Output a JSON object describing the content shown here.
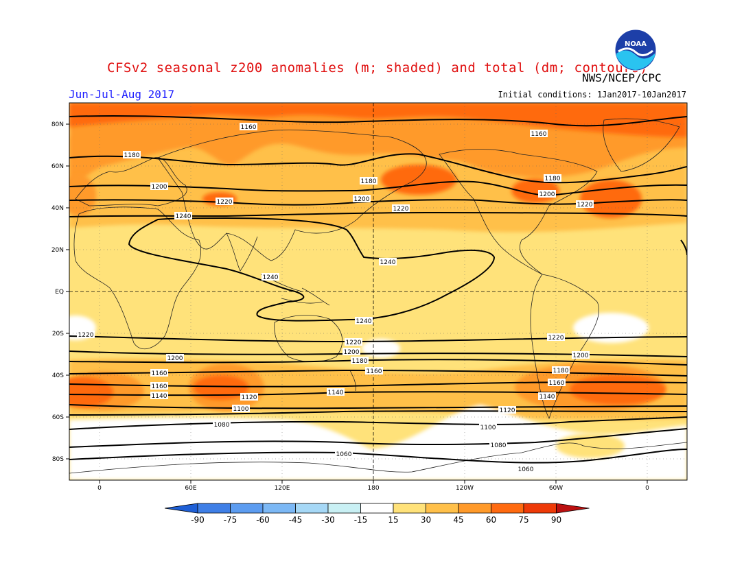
{
  "title": "CFSv2 seasonal z200 anomalies (m; shaded) and total (dm; contours)",
  "period": "Jun-Jul-Aug 2017",
  "credit": "NWS/NCEP/CPC",
  "initial_conditions": "Initial conditions: 1Jan2017-10Jan2017",
  "logo": {
    "text": "NOAA",
    "icon": "noaa-logo"
  },
  "lat_ticks": [
    "80N",
    "60N",
    "40N",
    "20N",
    "EQ",
    "20S",
    "40S",
    "60S",
    "80S"
  ],
  "lon_ticks": [
    "0",
    "60E",
    "120E",
    "180",
    "120W",
    "60W",
    "0"
  ],
  "contour_labels": [
    "1160",
    "1160",
    "1180",
    "1180",
    "1180",
    "1200",
    "1200",
    "1200",
    "1220",
    "1220",
    "1220",
    "1240",
    "1240",
    "1240",
    "1240",
    "1220",
    "1220",
    "1220",
    "1200",
    "1200",
    "1200",
    "1180",
    "1180",
    "1160",
    "1160",
    "1160",
    "1160",
    "1140",
    "1140",
    "1140",
    "1120",
    "1120",
    "1100",
    "1100",
    "1080",
    "1080",
    "1060",
    "1060"
  ],
  "colorbar": {
    "labels": [
      "-90",
      "-75",
      "-60",
      "-45",
      "-30",
      "-15",
      "15",
      "30",
      "45",
      "60",
      "75",
      "90"
    ],
    "colors": [
      "#1e5fd6",
      "#3f7fe6",
      "#5c9cf0",
      "#7cb8f5",
      "#a6d8f6",
      "#c9f0f4",
      "#ffffff",
      "#ffe27a",
      "#ffc04a",
      "#ff9a2a",
      "#ff6a10",
      "#ee3a08",
      "#bb1010"
    ]
  },
  "colors": {
    "title": "#e01010",
    "period": "#1a1aff"
  }
}
